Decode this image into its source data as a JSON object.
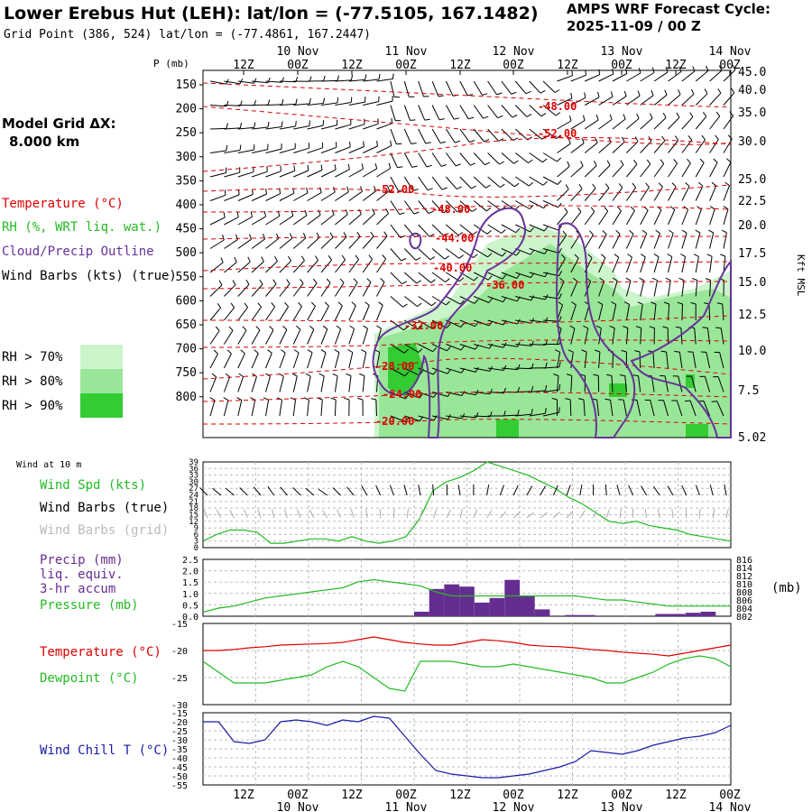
{
  "header": {
    "title": "Lower Erebus Hut (LEH):  lat/lon = (-77.5105, 167.1482)",
    "grid_point": "Grid Point (386, 524) lat/lon = (-77.4861, 167.2447)",
    "cycle_line1": "AMPS WRF Forecast Cycle:",
    "cycle_line2": "2025-11-09 / 00  Z"
  },
  "legend": {
    "model_grid": "Model Grid ΔX:",
    "model_grid_value": "8.000 km",
    "temperature": "Temperature (°C)",
    "rh": "RH (%, WRT liq. wat.)",
    "cloud": "Cloud/Precip Outline",
    "wind_barbs": "Wind Barbs (kts) (true)",
    "rh70": "RH > 70%",
    "rh80": "RH > 80%",
    "rh90": "RH > 90%",
    "wind10m": "Wind at 10 m",
    "wind_spd": "Wind Spd (kts)",
    "barbs_true": "Wind Barbs (true)",
    "barbs_grid": "Wind Barbs (grid)",
    "precip1": "Precip (mm)",
    "precip2": "liq. equiv.",
    "precip3": "3-hr accum",
    "pressure": "Pressure (mb)",
    "pressure_unit": "(mb)",
    "temp2": "Temperature (°C)",
    "dewpoint": "Dewpoint (°C)",
    "windchill": "Wind Chill T (°C)"
  },
  "colors": {
    "temperature": "#dd0000",
    "rh_text": "#22bb22",
    "cloud": "#663399",
    "rh70": "#ccf5cc",
    "rh80": "#99e699",
    "rh90": "#33cc33",
    "wind_spd": "#22bb22",
    "precip": "#662d91",
    "pressure": "#22bb22",
    "dewpoint": "#22bb22",
    "windchill": "#1a1aaa",
    "grid_barbs": "#aaaaaa"
  },
  "chart_data": [
    {
      "type": "line",
      "name": "cross-section",
      "ylabel": "P (mb)",
      "ylabel_right": "Kft MSL",
      "time_ticks": [
        "12Z",
        "00Z",
        "12Z",
        "00Z",
        "12Z",
        "00Z",
        "12Z",
        "00Z",
        "12Z",
        "00Z"
      ],
      "date_labels": [
        "10 Nov",
        "11 Nov",
        "12 Nov",
        "13 Nov",
        "14 Nov"
      ],
      "pressure_ticks": [
        "150",
        "200",
        "250",
        "300",
        "350",
        "400",
        "450",
        "500",
        "550",
        "600",
        "650",
        "700",
        "750",
        "800"
      ],
      "kft_ticks": [
        "45.0",
        "40.0",
        "35.0",
        "30.0",
        "25.0",
        "22.5",
        "20.0",
        "17.5",
        "15.0",
        "12.5",
        "10.0",
        "7.5",
        "5.02"
      ],
      "temp_labels": [
        "-48.00",
        "-52.00",
        "-52.00",
        "-48.00",
        "-44.00",
        "-40.00",
        "-36.00",
        "-32.00",
        "-28.00",
        "-24.00",
        "-20.00"
      ]
    },
    {
      "type": "line",
      "name": "wind-speed",
      "y_ticks": [
        "39",
        "36",
        "33",
        "30",
        "27",
        "24",
        "21",
        "18",
        "15",
        "12",
        "9",
        "6",
        "3",
        "0"
      ],
      "ylim": [
        0,
        39
      ],
      "values": [
        3,
        6,
        8,
        8,
        7,
        2,
        2,
        3,
        4,
        4,
        3,
        5,
        3,
        2,
        3,
        5,
        13,
        26,
        30,
        32,
        35,
        39,
        37,
        35,
        33,
        30,
        27,
        23,
        20,
        16,
        12,
        11,
        12,
        10,
        9,
        8,
        6,
        5,
        4,
        3
      ],
      "barb_angles": [
        35,
        40,
        40,
        35,
        30,
        25,
        30,
        35,
        40,
        45,
        35,
        30,
        20,
        15,
        10,
        5,
        0,
        355,
        350,
        0,
        350,
        340,
        330,
        325,
        320,
        320,
        325,
        330,
        340,
        350,
        355,
        5,
        15,
        20,
        25,
        20,
        15,
        10,
        5,
        0
      ]
    },
    {
      "type": "bar",
      "name": "precip-pressure",
      "y_ticks_left": [
        "2.5",
        "2.0",
        "1.5",
        "1.0",
        "0.5",
        "0.0"
      ],
      "y_ticks_right": [
        "816",
        "814",
        "812",
        "810",
        "808",
        "806",
        "804",
        "802"
      ],
      "ylim": [
        0,
        2.5
      ],
      "ylim_right": [
        802,
        816
      ],
      "precip": [
        0,
        0,
        0,
        0,
        0,
        0,
        0,
        0,
        0,
        0,
        0,
        0,
        0,
        0,
        0.2,
        1.2,
        1.4,
        1.3,
        0.6,
        0.8,
        1.6,
        0.9,
        0.3,
        0,
        0.05,
        0.05,
        0,
        0,
        0,
        0,
        0.1,
        0.1,
        0.15,
        0.2,
        0
      ],
      "pressure": [
        803,
        804,
        804.5,
        805.5,
        806.5,
        807,
        807.5,
        808,
        808.5,
        809,
        810.5,
        811,
        810.5,
        810,
        809.5,
        808,
        807,
        807,
        807,
        807,
        807,
        807,
        807,
        807,
        807,
        806.5,
        806,
        806,
        805.5,
        805,
        804.5,
        804.5,
        804.5,
        804.5,
        804.5
      ]
    },
    {
      "type": "line",
      "name": "temp-dewpoint",
      "y_ticks": [
        "-15",
        "-20",
        "-25",
        "-30"
      ],
      "ylim": [
        -30,
        -15
      ],
      "temperature": [
        -20,
        -20,
        -19.8,
        -19.5,
        -19.3,
        -19,
        -18.9,
        -18.8,
        -18.7,
        -18.5,
        -18,
        -17.5,
        -18,
        -18.5,
        -18.8,
        -19,
        -19,
        -18.5,
        -18,
        -18.2,
        -18.5,
        -19,
        -19.2,
        -19.3,
        -19.5,
        -19.8,
        -20,
        -20.3,
        -20.5,
        -20.7,
        -21,
        -20.5,
        -20,
        -19.5,
        -19
      ],
      "dewpoint": [
        -22,
        -24,
        -26,
        -26,
        -26,
        -25.5,
        -25,
        -24.5,
        -23,
        -22,
        -23,
        -25,
        -27,
        -27.5,
        -22,
        -22,
        -22,
        -22.5,
        -23,
        -23,
        -22.5,
        -23,
        -23.5,
        -24,
        -24.5,
        -25,
        -26,
        -26,
        -25,
        -24,
        -22.5,
        -21.5,
        -21,
        -21.5,
        -23
      ]
    },
    {
      "type": "line",
      "name": "wind-chill",
      "y_ticks": [
        "-15",
        "-20",
        "-25",
        "-30",
        "-35",
        "-40",
        "-45",
        "-50",
        "-55"
      ],
      "ylim": [
        -55,
        -15
      ],
      "x_ticks": [
        "12Z",
        "00Z",
        "12Z",
        "00Z",
        "12Z",
        "00Z",
        "12Z",
        "00Z",
        "12Z",
        "00Z"
      ],
      "date_labels": [
        "10 Nov",
        "11 Nov",
        "12 Nov",
        "13 Nov",
        "14 Nov"
      ],
      "values": [
        -20,
        -20,
        -31,
        -32,
        -30,
        -20,
        -19,
        -20,
        -22,
        -19,
        -20,
        -17,
        -18,
        -28,
        -38,
        -47,
        -49,
        -50,
        -51,
        -51,
        -50,
        -49,
        -47,
        -45,
        -42,
        -36,
        -37,
        -38,
        -36,
        -33,
        -31,
        -29,
        -28,
        -26,
        -22
      ]
    }
  ]
}
